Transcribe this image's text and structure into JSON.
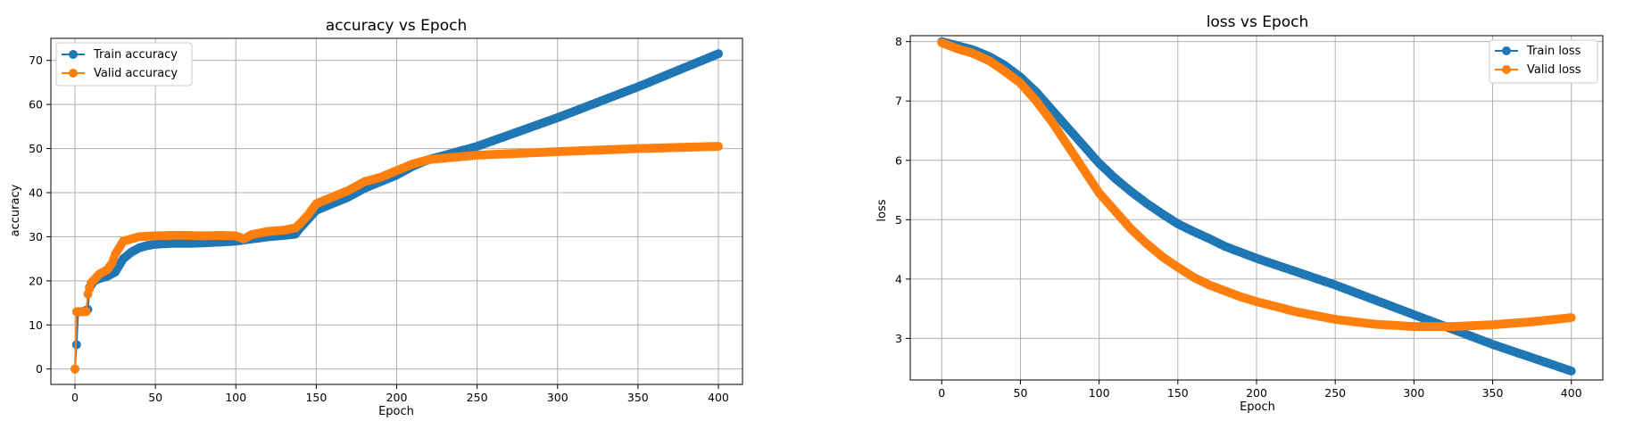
{
  "chart_data": [
    {
      "type": "line",
      "title": "accuracy vs Epoch",
      "xlabel": "Epoch",
      "ylabel": "accuracy",
      "xlim": [
        -15,
        415
      ],
      "ylim": [
        -3.5,
        75
      ],
      "xticks": [
        0,
        50,
        100,
        150,
        200,
        250,
        300,
        350,
        400
      ],
      "yticks": [
        0,
        10,
        20,
        30,
        40,
        50,
        60,
        70
      ],
      "grid": true,
      "legend_position": "top-left",
      "series": [
        {
          "name": "Train accuracy",
          "color": "#1f77b4",
          "points": [
            [
              0,
              0
            ],
            [
              1,
              5.5
            ],
            [
              2,
              13
            ],
            [
              5,
              13
            ],
            [
              8,
              13.5
            ],
            [
              9,
              18.5
            ],
            [
              12,
              20
            ],
            [
              15,
              20.5
            ],
            [
              20,
              21
            ],
            [
              25,
              22
            ],
            [
              30,
              25
            ],
            [
              35,
              26.5
            ],
            [
              40,
              27.5
            ],
            [
              45,
              28
            ],
            [
              50,
              28.3
            ],
            [
              60,
              28.5
            ],
            [
              70,
              28.5
            ],
            [
              80,
              28.6
            ],
            [
              90,
              28.8
            ],
            [
              100,
              29
            ],
            [
              110,
              29.5
            ],
            [
              120,
              30
            ],
            [
              130,
              30.3
            ],
            [
              137,
              30.6
            ],
            [
              140,
              32
            ],
            [
              145,
              34
            ],
            [
              150,
              36
            ],
            [
              160,
              37.5
            ],
            [
              170,
              39
            ],
            [
              180,
              41
            ],
            [
              190,
              42.5
            ],
            [
              200,
              44
            ],
            [
              210,
              46
            ],
            [
              220,
              47.5
            ],
            [
              230,
              48.5
            ],
            [
              250,
              50.5
            ],
            [
              300,
              57
            ],
            [
              350,
              64
            ],
            [
              400,
              71.5
            ]
          ]
        },
        {
          "name": "Valid accuracy",
          "color": "#ff7f0e",
          "points": [
            [
              0,
              0
            ],
            [
              1,
              13
            ],
            [
              2,
              13
            ],
            [
              5,
              13
            ],
            [
              7,
              13
            ],
            [
              8,
              17
            ],
            [
              10,
              19.5
            ],
            [
              15,
              21.5
            ],
            [
              20,
              22.5
            ],
            [
              23,
              24
            ],
            [
              25,
              26
            ],
            [
              30,
              29
            ],
            [
              35,
              29.5
            ],
            [
              40,
              30
            ],
            [
              50,
              30.2
            ],
            [
              60,
              30.3
            ],
            [
              70,
              30.3
            ],
            [
              80,
              30.2
            ],
            [
              90,
              30.3
            ],
            [
              100,
              30.2
            ],
            [
              105,
              29.5
            ],
            [
              110,
              30.5
            ],
            [
              120,
              31.2
            ],
            [
              130,
              31.5
            ],
            [
              137,
              32
            ],
            [
              140,
              33
            ],
            [
              145,
              35
            ],
            [
              150,
              37.5
            ],
            [
              160,
              39
            ],
            [
              170,
              40.5
            ],
            [
              180,
              42.5
            ],
            [
              190,
              43.5
            ],
            [
              200,
              45
            ],
            [
              210,
              46.5
            ],
            [
              220,
              47.5
            ],
            [
              250,
              48.5
            ],
            [
              300,
              49.3
            ],
            [
              350,
              50
            ],
            [
              400,
              50.5
            ]
          ]
        }
      ]
    },
    {
      "type": "line",
      "title": "loss vs Epoch",
      "xlabel": "Epoch",
      "ylabel": "loss",
      "xlim": [
        -20,
        420
      ],
      "ylim": [
        2.3,
        8.1
      ],
      "xticks": [
        0,
        50,
        100,
        150,
        200,
        250,
        300,
        350,
        400
      ],
      "yticks": [
        3,
        4,
        5,
        6,
        7,
        8
      ],
      "grid": true,
      "legend_position": "top-right",
      "series": [
        {
          "name": "Train loss",
          "color": "#1f77b4",
          "points": [
            [
              0,
              8
            ],
            [
              10,
              7.93
            ],
            [
              20,
              7.86
            ],
            [
              30,
              7.75
            ],
            [
              40,
              7.6
            ],
            [
              50,
              7.4
            ],
            [
              60,
              7.15
            ],
            [
              70,
              6.85
            ],
            [
              80,
              6.55
            ],
            [
              90,
              6.25
            ],
            [
              100,
              5.95
            ],
            [
              110,
              5.7
            ],
            [
              120,
              5.48
            ],
            [
              130,
              5.28
            ],
            [
              140,
              5.1
            ],
            [
              150,
              4.93
            ],
            [
              160,
              4.8
            ],
            [
              170,
              4.68
            ],
            [
              180,
              4.55
            ],
            [
              190,
              4.45
            ],
            [
              200,
              4.35
            ],
            [
              250,
              3.9
            ],
            [
              300,
              3.4
            ],
            [
              350,
              2.9
            ],
            [
              400,
              2.45
            ]
          ]
        },
        {
          "name": "Valid loss",
          "color": "#ff7f0e",
          "points": [
            [
              0,
              7.98
            ],
            [
              10,
              7.88
            ],
            [
              20,
              7.8
            ],
            [
              30,
              7.68
            ],
            [
              40,
              7.5
            ],
            [
              50,
              7.3
            ],
            [
              60,
              7.0
            ],
            [
              70,
              6.65
            ],
            [
              80,
              6.25
            ],
            [
              90,
              5.85
            ],
            [
              100,
              5.45
            ],
            [
              110,
              5.15
            ],
            [
              120,
              4.85
            ],
            [
              130,
              4.6
            ],
            [
              140,
              4.38
            ],
            [
              150,
              4.2
            ],
            [
              160,
              4.03
            ],
            [
              170,
              3.9
            ],
            [
              180,
              3.8
            ],
            [
              190,
              3.7
            ],
            [
              200,
              3.62
            ],
            [
              225,
              3.45
            ],
            [
              250,
              3.32
            ],
            [
              275,
              3.24
            ],
            [
              300,
              3.2
            ],
            [
              325,
              3.2
            ],
            [
              350,
              3.23
            ],
            [
              375,
              3.28
            ],
            [
              400,
              3.35
            ]
          ]
        }
      ]
    }
  ]
}
